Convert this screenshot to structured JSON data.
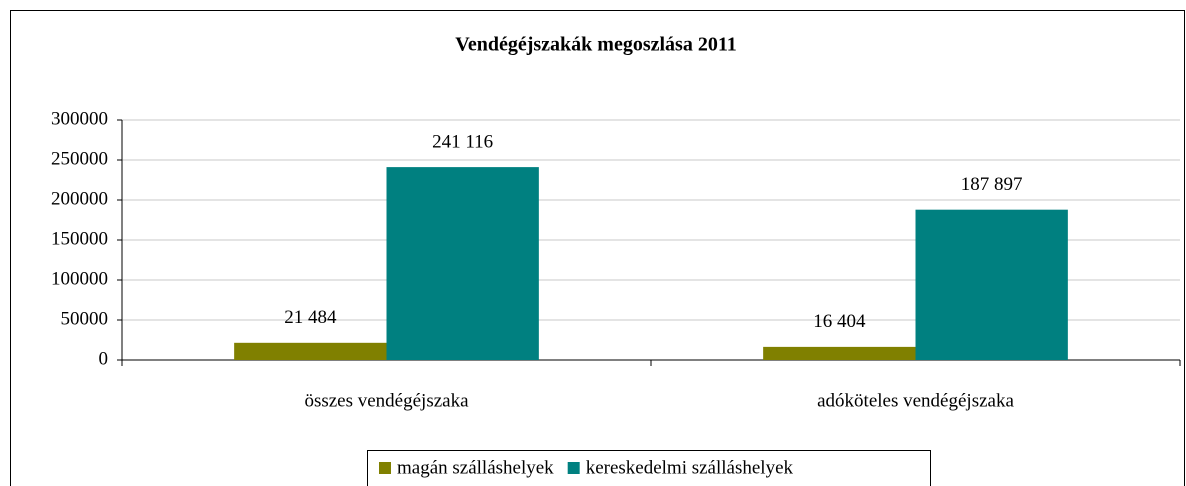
{
  "chart_data": {
    "type": "bar",
    "title": "Vendégéjszakák megoszlása 2011",
    "categories": [
      "összes vendégéjszaka",
      "adóköteles vendégéjszaka"
    ],
    "series": [
      {
        "name": "magán szálláshelyek",
        "color": "#808000",
        "values": [
          21484,
          16404
        ],
        "value_labels": [
          "21 484",
          "16 404"
        ]
      },
      {
        "name": "kereskedelmi szálláshelyek",
        "color": "#008080",
        "values": [
          241116,
          187897
        ],
        "value_labels": [
          "241 116",
          "187 897"
        ]
      }
    ],
    "ylim": [
      0,
      300000
    ],
    "yticks": [
      0,
      50000,
      100000,
      150000,
      200000,
      250000,
      300000
    ],
    "grid": true,
    "legend": "bottom"
  }
}
